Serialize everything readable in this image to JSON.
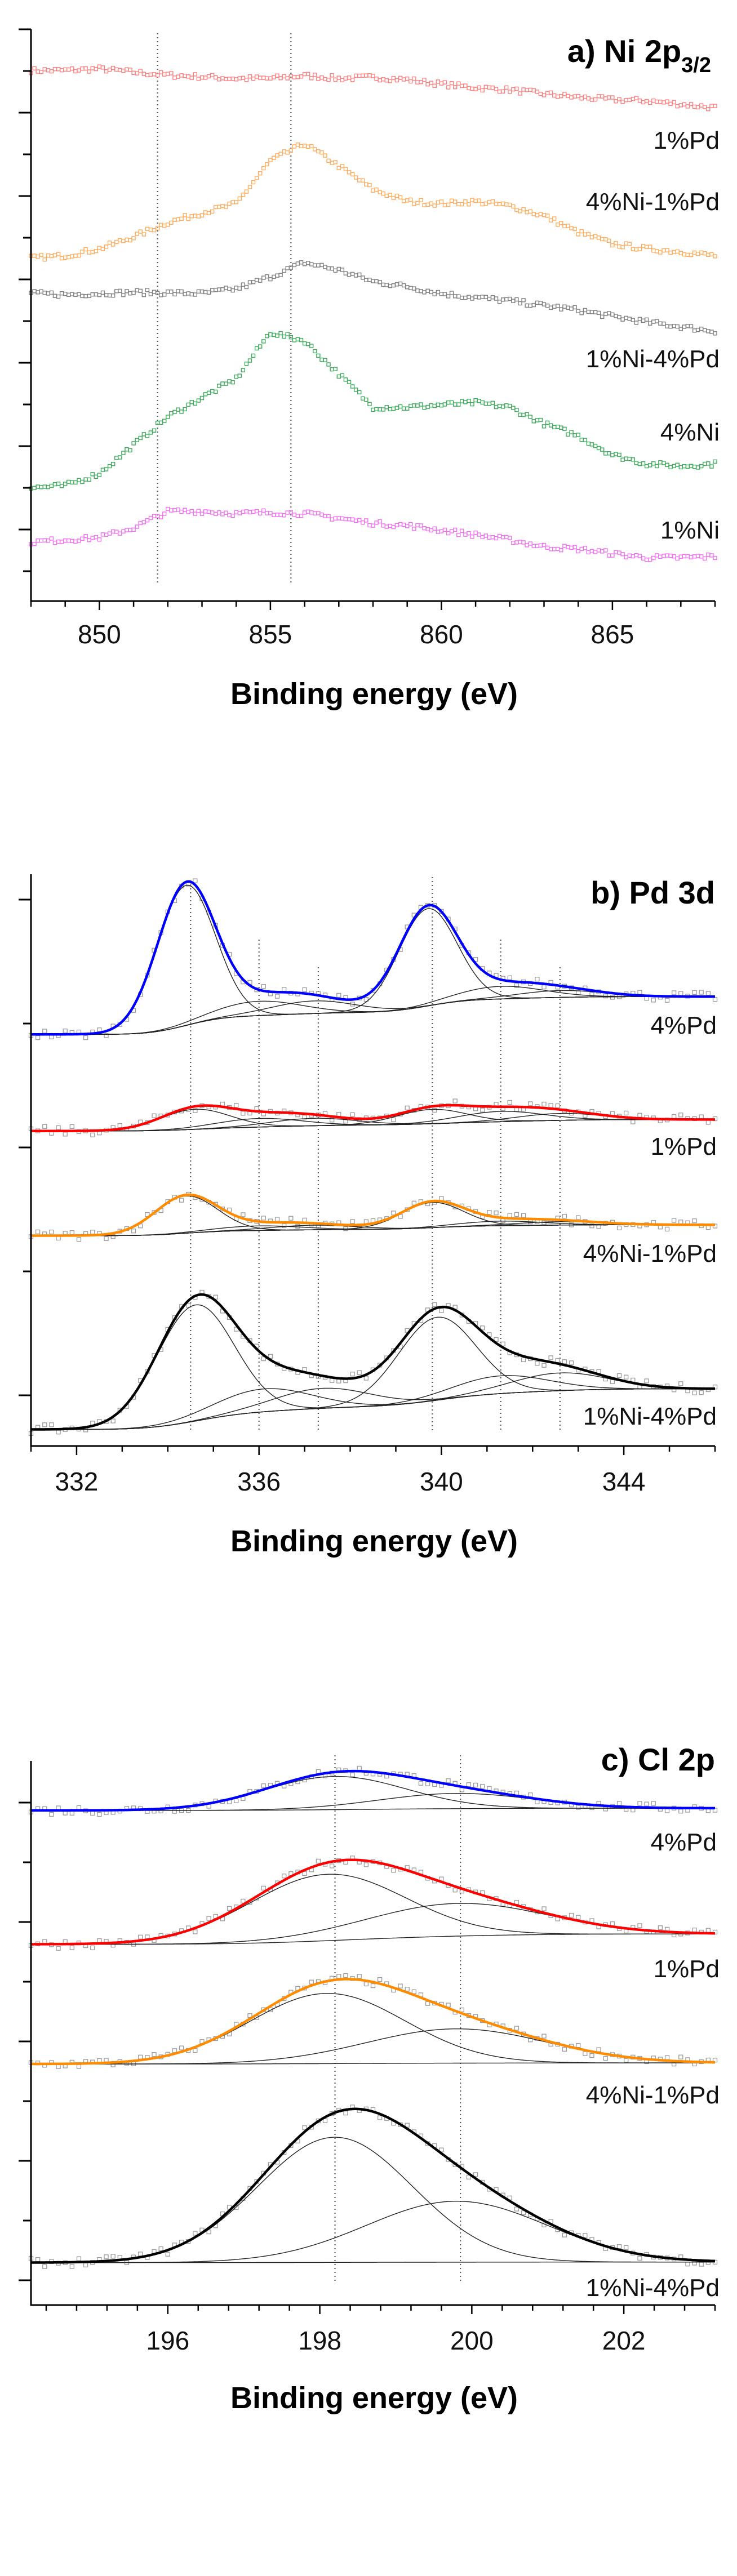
{
  "chart_data": [
    {
      "type": "scatter",
      "title": "a) Ni 2p",
      "title_sub": "3/2",
      "xlabel": "Binding energy (eV)",
      "ylabel": "",
      "xlim": [
        848,
        868
      ],
      "ylim": [
        0,
        100
      ],
      "xticks": [
        850,
        855,
        860,
        865
      ],
      "x_minor_step": 1,
      "y_units": "arbitrary (offset stacked)",
      "grid": false,
      "reference_lines": [
        851.7,
        855.6
      ],
      "x": [
        848,
        849,
        850,
        851,
        852,
        853,
        854,
        855,
        856,
        857,
        858,
        859,
        860,
        861,
        862,
        863,
        864,
        865,
        866,
        867,
        868
      ],
      "series": [
        {
          "name": "1%Pd",
          "color": "#ff7f7f",
          "values": [
            92.8,
            92.8,
            93.1,
            92.5,
            92.0,
            91.7,
            91.4,
            91.4,
            91.9,
            91.4,
            91.6,
            91.2,
            90.4,
            89.8,
            89.4,
            88.7,
            88.1,
            87.7,
            87.5,
            86.9,
            86.3
          ]
        },
        {
          "name": "4%Ni-1%Pd",
          "color": "#ffac5c",
          "values": [
            60.0,
            60.4,
            61.6,
            63.7,
            66.2,
            67.9,
            69.5,
            77.0,
            80.0,
            76.1,
            72.0,
            69.9,
            69.5,
            69.9,
            69.1,
            67.4,
            64.5,
            62.5,
            61.6,
            61.1,
            60.4
          ]
        },
        {
          "name": "1%Ni-4%Pd",
          "color": "#7f7f7f",
          "values": [
            53.8,
            53.6,
            53.8,
            54.0,
            53.9,
            53.8,
            54.6,
            56.7,
            59.2,
            57.9,
            55.9,
            55.0,
            53.8,
            53.1,
            52.5,
            51.7,
            50.9,
            49.8,
            48.8,
            48.0,
            47.2
          ]
        },
        {
          "name": "4%Ni",
          "color": "#3caa5a",
          "values": [
            19.8,
            20.2,
            22.3,
            27.3,
            32.2,
            35.6,
            38.9,
            47.0,
            45.5,
            39.7,
            33.9,
            33.9,
            34.3,
            34.7,
            33.9,
            31.0,
            28.9,
            25.6,
            24.0,
            23.6,
            24.0
          ]
        },
        {
          "name": "1%Ni",
          "color": "#f070f0",
          "values": [
            10.3,
            10.7,
            11.1,
            12.8,
            15.7,
            15.7,
            15.3,
            15.5,
            15.3,
            14.5,
            13.6,
            13.2,
            12.4,
            11.6,
            10.7,
            9.5,
            9.1,
            8.3,
            7.6,
            7.6,
            7.8
          ]
        }
      ]
    },
    {
      "type": "line",
      "title": "b) Pd 3d",
      "xlabel": "Binding energy (eV)",
      "ylabel": "",
      "xlim": [
        331,
        346
      ],
      "ylim": [
        0,
        100
      ],
      "xticks": [
        332,
        336,
        340,
        344
      ],
      "x_minor_step": 1,
      "y_units": "arbitrary (offset stacked)",
      "grid": false,
      "reference_lines": [
        334.5,
        336.0,
        337.3,
        339.8,
        341.3,
        342.6
      ],
      "component_format": [
        "center_eV",
        "fwhm_eV",
        "height"
      ],
      "series": [
        {
          "name": "4%Pd",
          "color": "#0000ff",
          "baseline": [
            72.0,
            78.6
          ],
          "components": [
            [
              334.4,
              1.5,
              24.5
            ],
            [
              339.7,
              1.5,
              17.0
            ],
            [
              336.0,
              2.2,
              2.5
            ],
            [
              337.2,
              2.2,
              2.2
            ],
            [
              341.3,
              2.2,
              2.2
            ],
            [
              342.6,
              2.2,
              1.2
            ]
          ]
        },
        {
          "name": "1%Pd",
          "color": "#ff0000",
          "baseline": [
            55.1,
            57.1
          ],
          "components": [
            [
              334.6,
              1.8,
              3.5
            ],
            [
              339.8,
              1.8,
              2.5
            ],
            [
              336.0,
              2.2,
              1.5
            ],
            [
              337.2,
              2.2,
              1.3
            ],
            [
              341.3,
              2.2,
              1.8
            ],
            [
              342.6,
              2.2,
              1.2
            ]
          ]
        },
        {
          "name": "4%Ni-1%Pd",
          "color": "#ff8c00",
          "baseline": [
            36.8,
            38.7
          ],
          "components": [
            [
              334.4,
              1.6,
              6.5
            ],
            [
              339.8,
              1.6,
              4.4
            ],
            [
              336.0,
              2.2,
              0.8
            ],
            [
              337.2,
              2.2,
              0.8
            ],
            [
              341.3,
              2.2,
              0.8
            ],
            [
              342.6,
              2.2,
              0.6
            ]
          ]
        },
        {
          "name": "1%Ni-4%Pd",
          "color": "#000000",
          "baseline": [
            2.9,
            10.0
          ],
          "components": [
            [
              334.6,
              2.0,
              20.3
            ],
            [
              339.9,
              2.0,
              14.5
            ],
            [
              336.1,
              2.5,
              4.0
            ],
            [
              337.4,
              2.5,
              3.5
            ],
            [
              341.3,
              2.5,
              3.1
            ],
            [
              342.6,
              2.5,
              3.1
            ]
          ]
        }
      ]
    },
    {
      "type": "line",
      "title": "c) Cl 2p",
      "xlabel": "Binding energy (eV)",
      "ylabel": "",
      "xlim": [
        194.2,
        203.2
      ],
      "ylim": [
        0,
        100
      ],
      "xticks": [
        196,
        198,
        200,
        202
      ],
      "x_minor_step": 0.4,
      "y_units": "arbitrary (offset stacked)",
      "grid": false,
      "reference_lines": [
        198.2,
        199.85
      ],
      "component_format": [
        "center_eV",
        "fwhm_eV",
        "height"
      ],
      "series": [
        {
          "name": "4%Pd",
          "color": "#0000ff",
          "baseline": [
            90.9,
            91.3
          ],
          "components": [
            [
              198.2,
              2.2,
              6.1
            ],
            [
              199.8,
              2.4,
              2.8
            ]
          ]
        },
        {
          "name": "1%Pd",
          "color": "#ff0000",
          "baseline": [
            66.3,
            68.2
          ],
          "components": [
            [
              198.1,
              2.4,
              12.2
            ],
            [
              199.8,
              2.8,
              6.0
            ]
          ]
        },
        {
          "name": "4%Ni-1%Pd",
          "color": "#ff8c00",
          "baseline": [
            44.3,
            44.5
          ],
          "components": [
            [
              198.1,
              2.4,
              12.9
            ],
            [
              199.8,
              2.8,
              6.3
            ]
          ]
        },
        {
          "name": "1%Ni-4%Pd",
          "color": "#000000",
          "baseline": [
            7.8,
            7.9
          ],
          "components": [
            [
              198.2,
              2.4,
              23.0
            ],
            [
              199.8,
              2.8,
              11.2
            ]
          ]
        }
      ]
    }
  ]
}
